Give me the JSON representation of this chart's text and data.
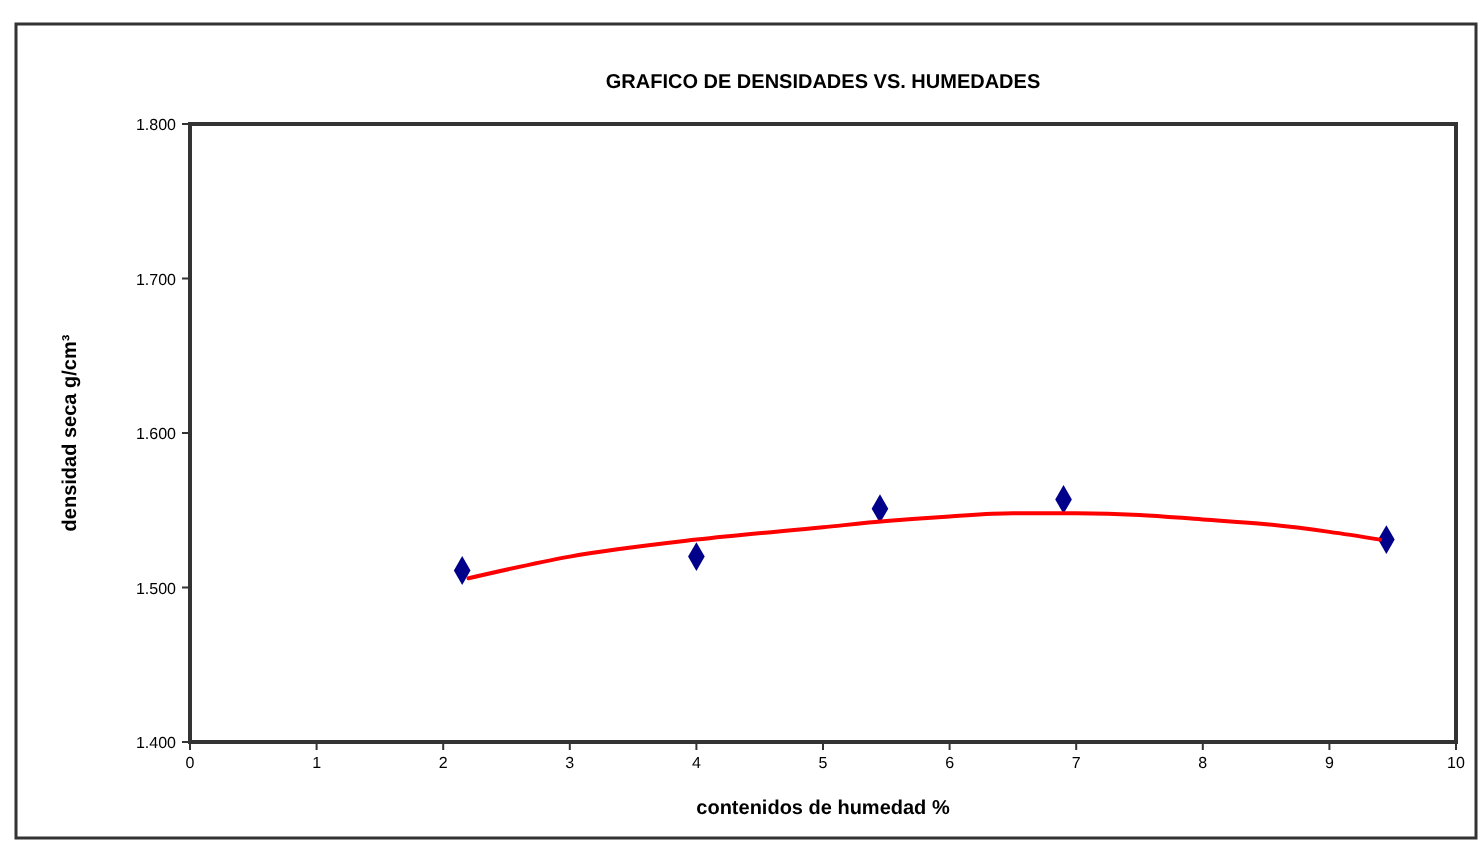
{
  "chart_data": {
    "type": "scatter",
    "title": "GRAFICO DE DENSIDADES   VS. HUMEDADES",
    "xlabel": "contenidos de humedad %",
    "ylabel": "densidad seca g/cm³",
    "xlim": [
      0,
      10
    ],
    "xticks": [
      0,
      1,
      2,
      3,
      4,
      5,
      6,
      7,
      8,
      9,
      10
    ],
    "ylim": [
      1.4,
      1.8
    ],
    "yticks": [
      {
        "value": 1.4,
        "label": "1.400"
      },
      {
        "value": 1.5,
        "label": "1.500"
      },
      {
        "value": 1.6,
        "label": "1.600"
      },
      {
        "value": 1.7,
        "label": "1.700"
      },
      {
        "value": 1.8,
        "label": "1.800"
      }
    ],
    "grid": false,
    "series": [
      {
        "color": "#00008b",
        "marker": "diamond",
        "x": [
          2.15,
          4.0,
          5.45,
          6.9,
          9.45
        ],
        "values": [
          1.511,
          1.52,
          1.551,
          1.557,
          1.531
        ]
      },
      {
        "type": "line",
        "color": "#ff0000",
        "marker": "none",
        "line_style": "solid",
        "x": [
          2.2,
          3,
          4,
          5,
          5.5,
          6,
          6.5,
          7,
          7.5,
          8,
          8.5,
          9,
          9.4
        ],
        "values": [
          1.506,
          1.52,
          1.531,
          1.539,
          1.543,
          1.546,
          1.548,
          1.548,
          1.547,
          1.544,
          1.541,
          1.536,
          1.531
        ]
      }
    ]
  }
}
